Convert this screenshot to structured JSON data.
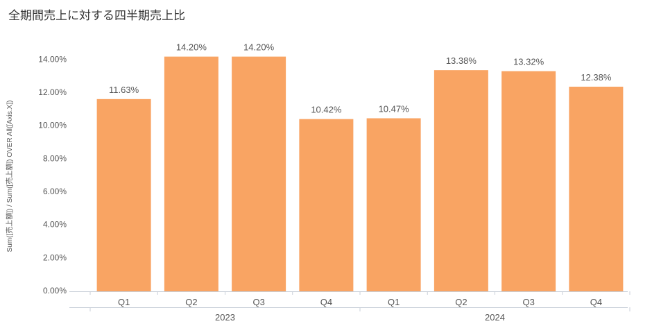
{
  "chart_data": {
    "type": "bar",
    "title": "全期間売上に対する四半期売上比",
    "ylabel": "Sum([売上額]) / Sum([売上額]) OVER All([Axis.X])",
    "xlabel": "",
    "ylim": [
      0,
      15
    ],
    "yticks": [
      0,
      2,
      4,
      6,
      8,
      10,
      12,
      14
    ],
    "ytick_labels": [
      "0.00%",
      "2.00%",
      "4.00%",
      "6.00%",
      "8.00%",
      "10.00%",
      "12.00%",
      "14.00%"
    ],
    "categories": [
      "Q1",
      "Q2",
      "Q3",
      "Q4",
      "Q1",
      "Q2",
      "Q3",
      "Q4"
    ],
    "groups": [
      {
        "label": "2023",
        "count": 4
      },
      {
        "label": "2024",
        "count": 4
      }
    ],
    "values": [
      11.63,
      14.2,
      14.2,
      10.42,
      10.47,
      13.38,
      13.32,
      12.38
    ],
    "data_labels": [
      "11.63%",
      "14.20%",
      "14.20%",
      "10.42%",
      "10.47%",
      "13.38%",
      "13.32%",
      "12.38%"
    ],
    "bar_color": "#F9A463",
    "grid": false
  }
}
